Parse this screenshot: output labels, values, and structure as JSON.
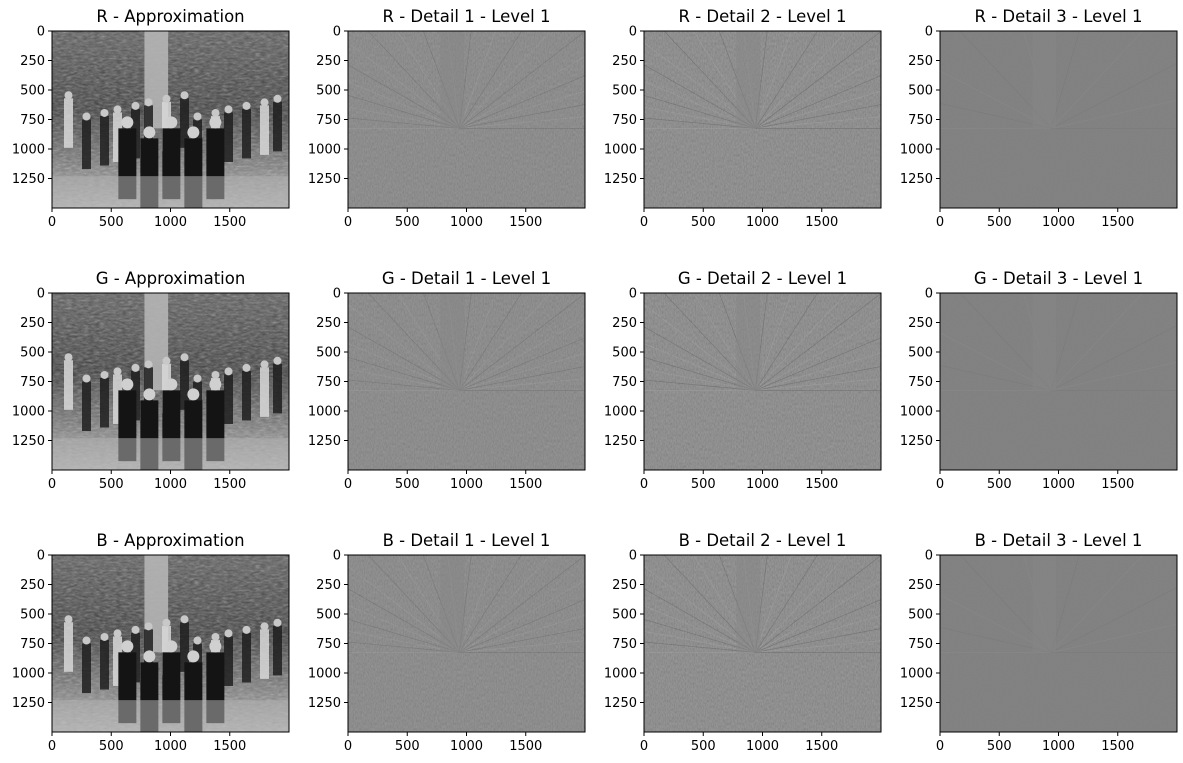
{
  "figure": {
    "background": "#ffffff"
  },
  "chart_data": {
    "type": "image-grid",
    "layout": {
      "rows": 3,
      "cols": 4
    },
    "image_extent": {
      "x": [
        0,
        2000
      ],
      "y": [
        0,
        1500
      ]
    },
    "xticks": [
      0,
      500,
      1000,
      1500
    ],
    "yticks": [
      0,
      250,
      500,
      750,
      1000,
      1250
    ],
    "panels": [
      {
        "title": "R - Approximation",
        "kind": "approximation",
        "channel": "R",
        "detail": 0
      },
      {
        "title": "R - Detail 1 - Level 1",
        "kind": "detail",
        "channel": "R",
        "detail": 1
      },
      {
        "title": "R - Detail 2 - Level 1",
        "kind": "detail",
        "channel": "R",
        "detail": 2
      },
      {
        "title": "R - Detail 3 - Level 1",
        "kind": "detail",
        "channel": "R",
        "detail": 3
      },
      {
        "title": "G - Approximation",
        "kind": "approximation",
        "channel": "G",
        "detail": 0
      },
      {
        "title": "G - Detail 1 - Level 1",
        "kind": "detail",
        "channel": "G",
        "detail": 1
      },
      {
        "title": "G - Detail 2 - Level 1",
        "kind": "detail",
        "channel": "G",
        "detail": 2
      },
      {
        "title": "G - Detail 3 - Level 1",
        "kind": "detail",
        "channel": "G",
        "detail": 3
      },
      {
        "title": "B - Approximation",
        "kind": "approximation",
        "channel": "B",
        "detail": 0
      },
      {
        "title": "B - Detail 1 - Level 1",
        "kind": "detail",
        "channel": "B",
        "detail": 1
      },
      {
        "title": "B - Detail 2 - Level 1",
        "kind": "detail",
        "channel": "B",
        "detail": 2
      },
      {
        "title": "B - Detail 3 - Level 1",
        "kind": "detail",
        "channel": "B",
        "detail": 3
      }
    ],
    "colormap": "gray",
    "grid": false,
    "legend": "none"
  }
}
